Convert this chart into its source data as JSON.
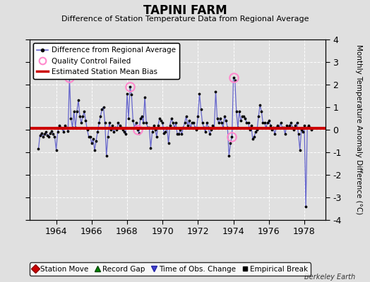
{
  "title": "TAPINI FARM",
  "subtitle": "Difference of Station Temperature Data from Regional Average",
  "ylabel": "Monthly Temperature Anomaly Difference (°C)",
  "ylim": [
    -4,
    4
  ],
  "xlim": [
    1962.5,
    1979.2
  ],
  "bias_value": 0.05,
  "background_color": "#e0e0e0",
  "plot_bg_color": "#e0e0e0",
  "line_color": "#6666cc",
  "bias_color": "#cc0000",
  "qc_color": "#ff88cc",
  "watermark": "Berkeley Earth",
  "t_start": 1963.0,
  "time_series": [
    -0.85,
    -0.25,
    -0.15,
    -0.3,
    -0.2,
    -0.1,
    -0.25,
    -0.3,
    -0.15,
    -0.05,
    -0.2,
    -0.3,
    -0.9,
    -0.1,
    0.2,
    0.1,
    0.05,
    -0.1,
    0.2,
    0.1,
    -0.05,
    2.3,
    0.5,
    0.1,
    0.8,
    0.1,
    0.8,
    1.3,
    0.6,
    0.3,
    0.6,
    0.8,
    0.4,
    0.0,
    -0.3,
    -0.3,
    -0.6,
    -0.4,
    -0.9,
    -0.5,
    -0.1,
    0.3,
    0.6,
    0.9,
    1.0,
    0.3,
    -1.15,
    -0.3,
    0.3,
    0.0,
    0.2,
    -0.1,
    0.1,
    0.0,
    0.3,
    0.2,
    0.1,
    0.0,
    -0.1,
    -0.2,
    1.6,
    0.5,
    1.9,
    1.55,
    0.4,
    0.1,
    0.3,
    0.0,
    -0.15,
    0.5,
    0.6,
    0.3,
    1.45,
    0.3,
    0.1,
    0.1,
    -0.8,
    -0.1,
    0.2,
    0.0,
    -0.3,
    0.2,
    0.5,
    0.4,
    0.3,
    -0.15,
    -0.1,
    0.1,
    -0.6,
    0.2,
    0.5,
    0.3,
    0.1,
    0.3,
    -0.2,
    -0.2,
    0.0,
    -0.2,
    0.1,
    0.3,
    0.6,
    0.2,
    0.4,
    0.1,
    0.3,
    0.3,
    0.1,
    0.0,
    0.6,
    1.6,
    0.9,
    0.3,
    0.1,
    -0.1,
    0.3,
    0.1,
    -0.2,
    0.0,
    0.2,
    0.1,
    1.7,
    0.5,
    0.3,
    0.5,
    0.3,
    0.1,
    0.6,
    0.4,
    0.1,
    -1.15,
    -0.6,
    -0.3,
    2.3,
    2.2,
    0.8,
    0.1,
    0.8,
    0.4,
    0.6,
    0.6,
    0.5,
    0.3,
    0.3,
    0.0,
    0.2,
    -0.4,
    -0.3,
    -0.1,
    0.0,
    0.6,
    1.1,
    0.8,
    0.3,
    0.3,
    0.1,
    0.3,
    0.4,
    0.2,
    0.0,
    0.1,
    -0.2,
    0.1,
    0.2,
    0.1,
    0.3,
    0.1,
    0.1,
    -0.2,
    0.2,
    0.1,
    0.2,
    0.3,
    0.1,
    0.0,
    0.2,
    0.3,
    -0.2,
    -0.9,
    0.0,
    -0.1,
    0.2,
    -3.4,
    0.1,
    0.2,
    0.1,
    0.0
  ],
  "qc_failed_indices": [
    21,
    62,
    67,
    131,
    132
  ],
  "xticks": [
    1964,
    1966,
    1968,
    1970,
    1972,
    1974,
    1976,
    1978
  ],
  "yticks": [
    -4,
    -3,
    -2,
    -1,
    0,
    1,
    2,
    3,
    4
  ]
}
